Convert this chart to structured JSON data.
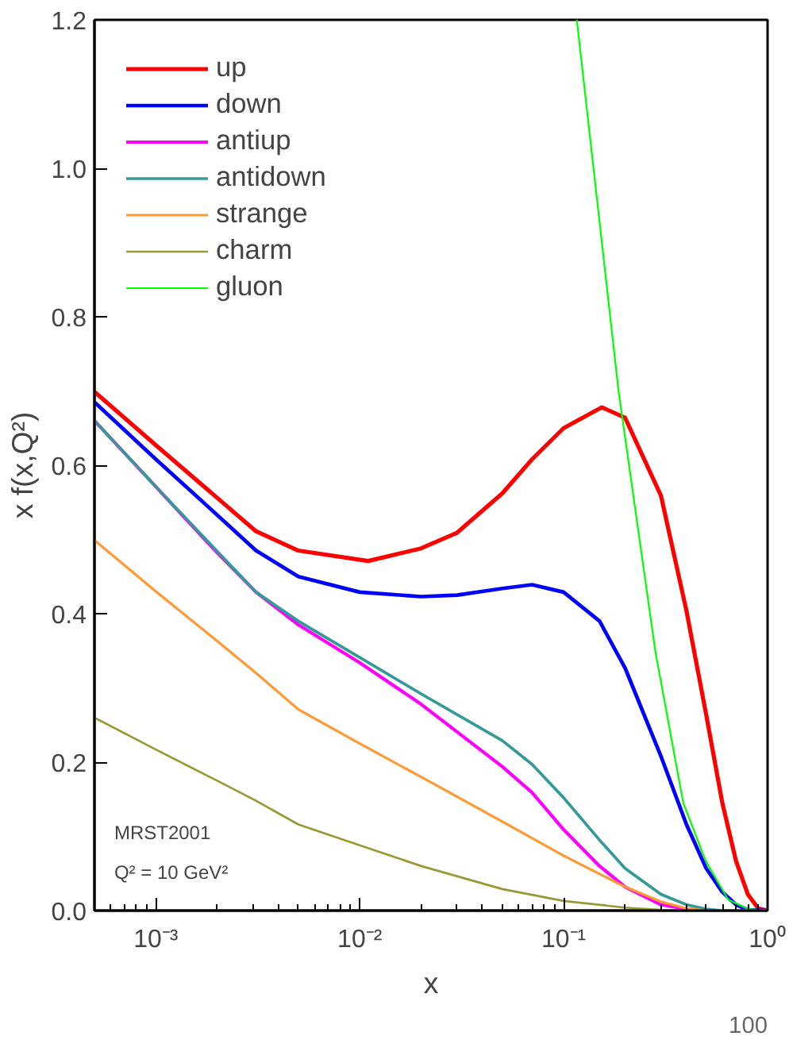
{
  "chart_data": {
    "type": "line",
    "xlabel": "x",
    "ylabel": "x f(x,Q²)",
    "log": "x",
    "xlim": [
      0.0005,
      1
    ],
    "ylim": [
      0,
      1.2
    ],
    "xticks": [
      {
        "value": 0.001,
        "label": "10⁻³"
      },
      {
        "value": 0.01,
        "label": "10⁻²"
      },
      {
        "value": 0.1,
        "label": "10⁻¹"
      },
      {
        "value": 1,
        "label": "10⁰"
      }
    ],
    "yticks": [
      {
        "value": 0,
        "label": "0.0"
      },
      {
        "value": 0.2,
        "label": "0.2"
      },
      {
        "value": 0.4,
        "label": "0.4"
      },
      {
        "value": 0.6,
        "label": "0.6"
      },
      {
        "value": 0.8,
        "label": "0.8"
      },
      {
        "value": 1.0,
        "label": "1.0"
      },
      {
        "value": 1.2,
        "label": "1.2"
      }
    ],
    "grid": false,
    "legend": "top left",
    "line_style": "solid",
    "marker": "none",
    "annotations": [
      "MRST2001",
      "Q² = 10 GeV²",
      "100"
    ],
    "series": [
      {
        "name": "up",
        "color": "#ff0000",
        "x": [
          0.0005,
          0.001,
          0.002,
          0.0031,
          0.005,
          0.011,
          0.02,
          0.03,
          0.05,
          0.07,
          0.1,
          0.154,
          0.2,
          0.3,
          0.4,
          0.5,
          0.6,
          0.7,
          0.8,
          0.9,
          1
        ],
        "values": [
          0.699,
          0.627,
          0.556,
          0.511,
          0.485,
          0.471,
          0.488,
          0.509,
          0.562,
          0.608,
          0.65,
          0.678,
          0.664,
          0.559,
          0.404,
          0.264,
          0.145,
          0.067,
          0.022,
          0.003,
          0
        ]
      },
      {
        "name": "down",
        "color": "#0000ff",
        "x": [
          0.0005,
          0.001,
          0.002,
          0.0031,
          0.005,
          0.01,
          0.02,
          0.03,
          0.05,
          0.07,
          0.1,
          0.15,
          0.2,
          0.3,
          0.4,
          0.5,
          0.6,
          0.7,
          0.8,
          1
        ],
        "values": [
          0.685,
          0.608,
          0.533,
          0.485,
          0.45,
          0.429,
          0.423,
          0.425,
          0.434,
          0.439,
          0.429,
          0.39,
          0.327,
          0.208,
          0.116,
          0.057,
          0.025,
          0.008,
          0.001,
          0
        ]
      },
      {
        "name": "antiup",
        "color": "#ff00ff",
        "x": [
          0.0005,
          0.001,
          0.002,
          0.0031,
          0.005,
          0.01,
          0.02,
          0.05,
          0.07,
          0.1,
          0.15,
          0.2,
          0.3,
          0.4,
          0.5,
          1
        ],
        "values": [
          0.66,
          0.571,
          0.482,
          0.429,
          0.385,
          0.334,
          0.278,
          0.194,
          0.159,
          0.109,
          0.06,
          0.032,
          0.008,
          0.002,
          0,
          0
        ]
      },
      {
        "name": "antidown",
        "color": "#339999",
        "x": [
          0.0005,
          0.001,
          0.002,
          0.0031,
          0.005,
          0.01,
          0.02,
          0.05,
          0.07,
          0.1,
          0.15,
          0.2,
          0.3,
          0.4,
          0.5,
          0.6,
          1
        ],
        "values": [
          0.66,
          0.571,
          0.484,
          0.429,
          0.39,
          0.341,
          0.292,
          0.229,
          0.197,
          0.152,
          0.095,
          0.057,
          0.022,
          0.008,
          0.002,
          0,
          0
        ]
      },
      {
        "name": "strange",
        "color": "#ff9933",
        "x": [
          0.0005,
          0.001,
          0.002,
          0.0031,
          0.005,
          0.01,
          0.02,
          0.05,
          0.1,
          0.2,
          0.3,
          0.4,
          0.5,
          1
        ],
        "values": [
          0.499,
          0.43,
          0.363,
          0.32,
          0.271,
          0.225,
          0.18,
          0.12,
          0.074,
          0.032,
          0.012,
          0.003,
          0,
          0
        ]
      },
      {
        "name": "charm",
        "color": "#999933",
        "x": [
          0.0005,
          0.001,
          0.002,
          0.0031,
          0.005,
          0.01,
          0.02,
          0.05,
          0.1,
          0.2,
          0.3,
          0.5,
          1
        ],
        "values": [
          0.26,
          0.217,
          0.175,
          0.148,
          0.116,
          0.088,
          0.06,
          0.029,
          0.013,
          0.004,
          0.001,
          0,
          0
        ]
      },
      {
        "name": "gluon",
        "color": "#00ff00",
        "x": [
          0.116,
          0.186,
          0.282,
          0.386,
          0.497,
          0.64,
          0.8,
          1
        ],
        "values": [
          1.2,
          0.699,
          0.348,
          0.145,
          0.067,
          0.015,
          0.002,
          0
        ]
      }
    ]
  }
}
